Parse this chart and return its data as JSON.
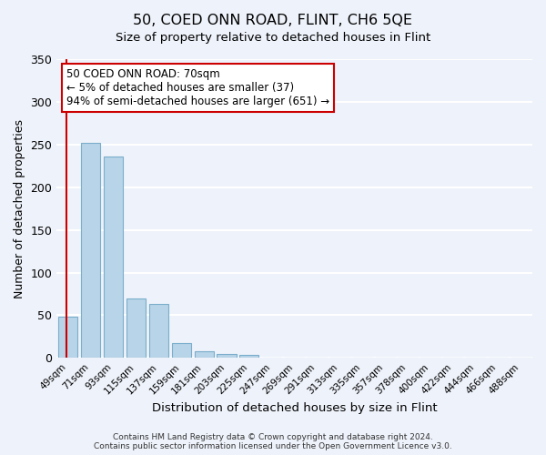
{
  "title": "50, COED ONN ROAD, FLINT, CH6 5QE",
  "subtitle": "Size of property relative to detached houses in Flint",
  "xlabel": "Distribution of detached houses by size in Flint",
  "ylabel": "Number of detached properties",
  "bar_labels": [
    "49sqm",
    "71sqm",
    "93sqm",
    "115sqm",
    "137sqm",
    "159sqm",
    "181sqm",
    "203sqm",
    "225sqm",
    "247sqm",
    "269sqm",
    "291sqm",
    "313sqm",
    "335sqm",
    "357sqm",
    "378sqm",
    "400sqm",
    "422sqm",
    "444sqm",
    "466sqm",
    "488sqm"
  ],
  "bar_values": [
    48,
    252,
    236,
    70,
    63,
    17,
    8,
    5,
    4,
    0,
    0,
    0,
    0,
    0,
    0,
    0,
    0,
    0,
    0,
    0,
    0
  ],
  "bar_color": "#b8d4e8",
  "bar_edge_color": "#7aaecb",
  "marker_color": "#cc0000",
  "annotation_line1": "50 COED ONN ROAD: 70sqm",
  "annotation_line2": "← 5% of detached houses are smaller (37)",
  "annotation_line3": "94% of semi-detached houses are larger (651) →",
  "annotation_box_color": "#ffffff",
  "annotation_box_edge": "#cc0000",
  "ylim": [
    0,
    350
  ],
  "yticks": [
    0,
    50,
    100,
    150,
    200,
    250,
    300,
    350
  ],
  "footer_line1": "Contains HM Land Registry data © Crown copyright and database right 2024.",
  "footer_line2": "Contains public sector information licensed under the Open Government Licence v3.0.",
  "background_color": "#eef2fa",
  "grid_color": "#ffffff"
}
